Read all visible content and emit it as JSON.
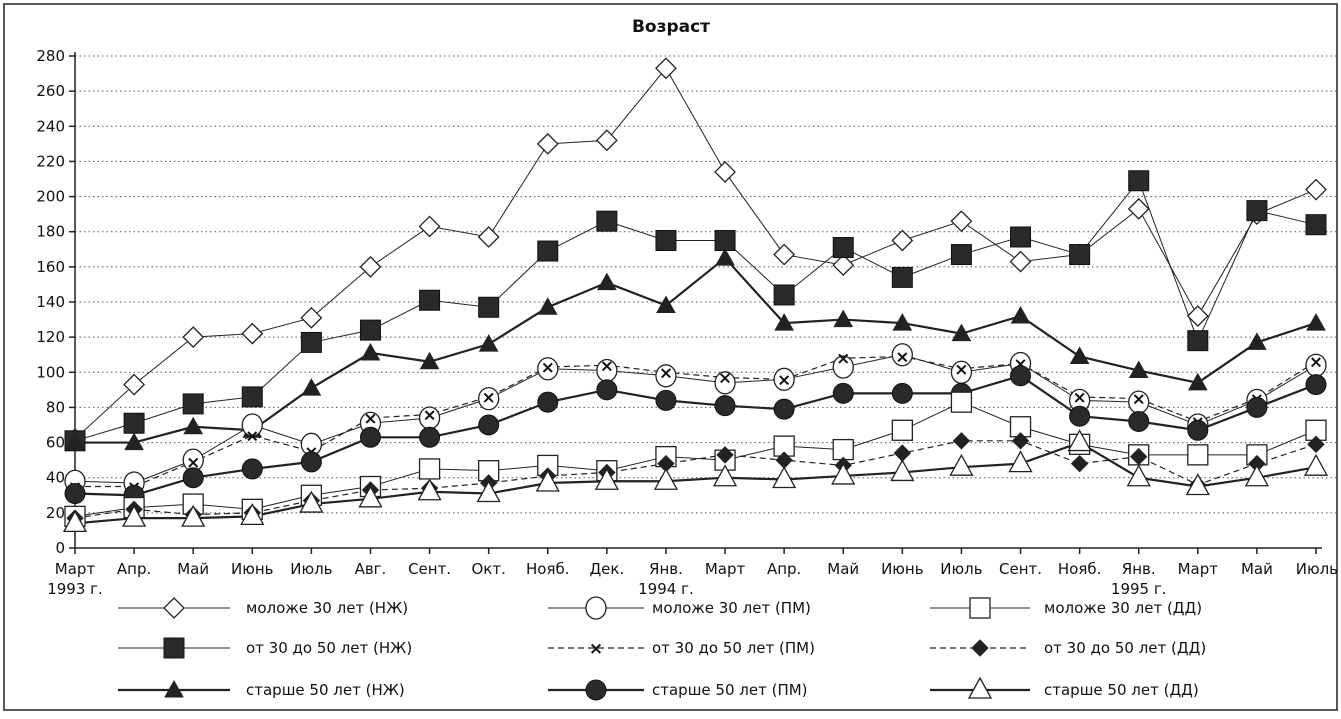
{
  "chart_data": {
    "type": "line",
    "title": "Возраст",
    "xlabel": "",
    "ylabel": "",
    "ylim": [
      0,
      280
    ],
    "yticks": [
      0,
      20,
      40,
      60,
      80,
      100,
      120,
      140,
      160,
      180,
      200,
      220,
      240,
      260,
      280
    ],
    "grid": "horizontal dotted",
    "legend_position": "bottom",
    "categories": [
      [
        "Март",
        "1993 г."
      ],
      [
        "Апр.",
        ""
      ],
      [
        "Май",
        ""
      ],
      [
        "Июнь",
        ""
      ],
      [
        "Июль",
        ""
      ],
      [
        "Авг.",
        ""
      ],
      [
        "Сент.",
        ""
      ],
      [
        "Окт.",
        ""
      ],
      [
        "Нояб.",
        ""
      ],
      [
        "Дек.",
        ""
      ],
      [
        "Янв.",
        "1994 г."
      ],
      [
        "Март",
        ""
      ],
      [
        "Апр.",
        ""
      ],
      [
        "Май",
        ""
      ],
      [
        "Июнь",
        ""
      ],
      [
        "Июль",
        ""
      ],
      [
        "Сент.",
        ""
      ],
      [
        "Нояб.",
        ""
      ],
      [
        "Янв.",
        "1995 г."
      ],
      [
        "Март",
        ""
      ],
      [
        "Май",
        ""
      ],
      [
        "Июль",
        ""
      ]
    ],
    "series": [
      {
        "name": "моложе 30 лет (НЖ)",
        "marker": "diamond-open",
        "line": "thin-solid",
        "values": [
          62,
          93,
          120,
          122,
          131,
          160,
          183,
          177,
          230,
          232,
          273,
          214,
          167,
          161,
          175,
          186,
          163,
          167,
          193,
          132,
          190,
          204
        ]
      },
      {
        "name": "моложе 30 лет (ПМ)",
        "marker": "circle-open",
        "line": "thin-solid",
        "values": [
          38,
          37,
          50,
          70,
          59,
          71,
          74,
          85,
          102,
          101,
          98,
          94,
          96,
          103,
          110,
          100,
          105,
          84,
          83,
          70,
          84,
          104
        ]
      },
      {
        "name": "моложе 30 лет (ДД)",
        "marker": "square-open",
        "line": "thin-solid",
        "values": [
          18,
          23,
          25,
          22,
          30,
          35,
          45,
          44,
          47,
          44,
          52,
          50,
          58,
          56,
          67,
          83,
          69,
          59,
          53,
          53,
          53,
          67
        ]
      },
      {
        "name": "от  30 до 50 лет (НЖ)",
        "marker": "square-filled",
        "line": "thin-solid",
        "values": [
          61,
          71,
          82,
          86,
          117,
          124,
          141,
          137,
          169,
          186,
          175,
          175,
          144,
          171,
          154,
          167,
          177,
          167,
          209,
          118,
          192,
          184
        ]
      },
      {
        "name": "от  30 до 50 лет (ПМ)",
        "marker": "x",
        "line": "dashed",
        "values": [
          35,
          35,
          49,
          64,
          55,
          74,
          76,
          86,
          103,
          104,
          100,
          97,
          96,
          108,
          109,
          102,
          105,
          86,
          85,
          72,
          85,
          106
        ]
      },
      {
        "name": "от  30 до 50 лет (ДД)",
        "marker": "diamond-filled",
        "line": "dashed",
        "values": [
          17,
          22,
          19,
          20,
          27,
          33,
          34,
          37,
          41,
          43,
          48,
          53,
          50,
          47,
          54,
          61,
          61,
          48,
          52,
          36,
          48,
          59
        ]
      },
      {
        "name": "старше 50 лет (НЖ)",
        "marker": "triangle-filled",
        "line": "thick-solid",
        "values": [
          60,
          60,
          69,
          67,
          91,
          111,
          106,
          116,
          137,
          151,
          138,
          165,
          128,
          130,
          128,
          122,
          132,
          109,
          101,
          94,
          117,
          128
        ]
      },
      {
        "name": "старше 50 лет (ПМ)",
        "marker": "circle-filled",
        "line": "thick-solid",
        "values": [
          31,
          30,
          40,
          45,
          49,
          63,
          63,
          70,
          83,
          90,
          84,
          81,
          79,
          88,
          88,
          88,
          98,
          75,
          72,
          67,
          80,
          93
        ]
      },
      {
        "name": "старше 50 лет (ДД)",
        "marker": "triangle-open",
        "line": "thick-solid",
        "values": [
          14,
          17,
          17,
          18,
          25,
          28,
          32,
          31,
          37,
          38,
          38,
          40,
          39,
          41,
          43,
          46,
          48,
          60,
          40,
          35,
          40,
          46
        ]
      }
    ]
  }
}
